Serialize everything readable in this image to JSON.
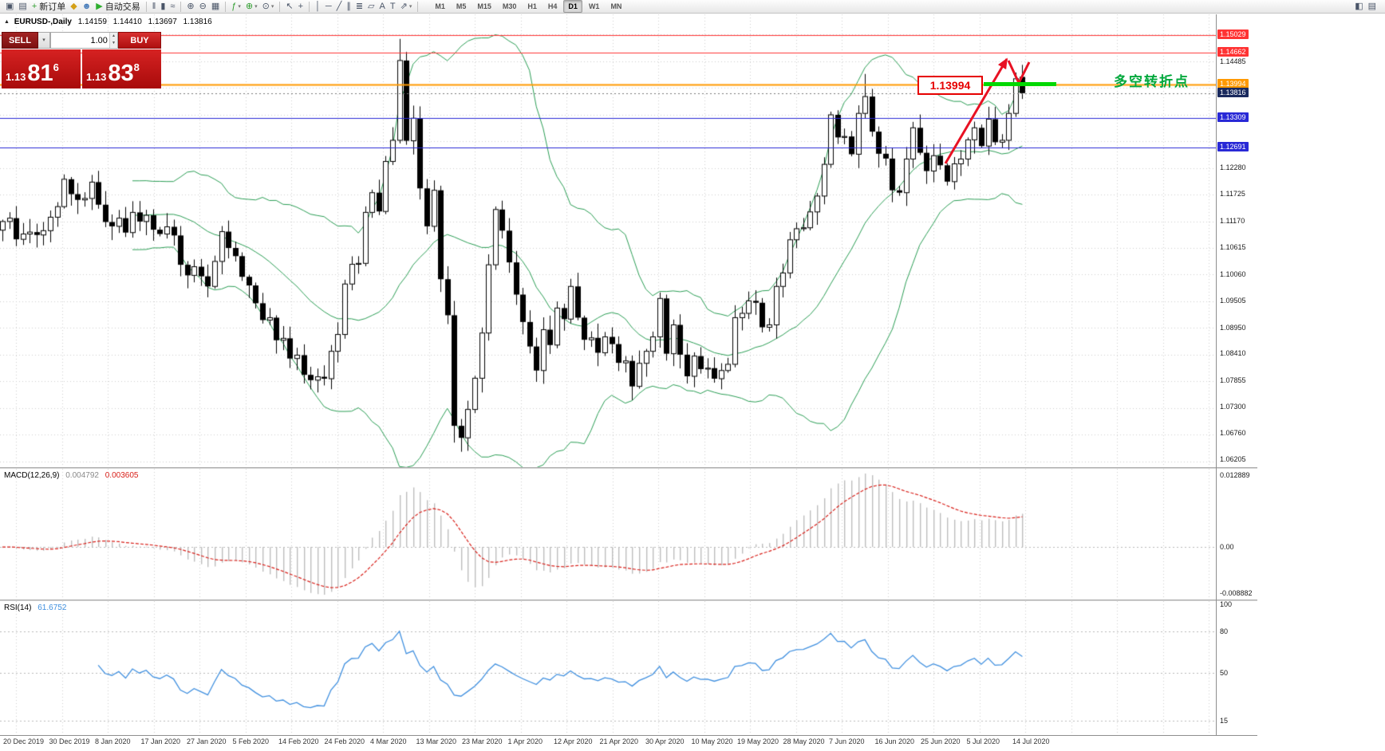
{
  "toolbar": {
    "items": [
      {
        "name": "terminal-window-icon",
        "glyph": "▣"
      },
      {
        "name": "new-chart-icon",
        "glyph": "▤"
      },
      {
        "name": "new-order-button",
        "glyph": "+",
        "label": "新订单",
        "color": "#2e9e2e",
        "caret": false
      },
      {
        "name": "metaquotes-icon",
        "glyph": "◆",
        "color": "#d4a017"
      },
      {
        "name": "community-icon",
        "glyph": "☻",
        "color": "#4a7ebb"
      },
      {
        "name": "autotrading-button",
        "glyph": "▶",
        "label": "自动交易",
        "color": "#2eae2e"
      },
      {
        "type": "sep"
      },
      {
        "name": "chart-bars-icon",
        "glyph": "‖"
      },
      {
        "name": "chart-candles-icon",
        "glyph": "▮"
      },
      {
        "name": "chart-line-icon",
        "glyph": "≈"
      },
      {
        "type": "sep"
      },
      {
        "name": "zoom-in-icon",
        "glyph": "⊕"
      },
      {
        "name": "zoom-out-icon",
        "glyph": "⊖"
      },
      {
        "name": "tile-windows-icon",
        "glyph": "▦"
      },
      {
        "type": "sep"
      },
      {
        "name": "indicators-button",
        "glyph": "ƒ",
        "color": "#2e9e2e",
        "caret": true
      },
      {
        "name": "add-indicator-button",
        "glyph": "⊕",
        "color": "#2e9e2e",
        "caret": true
      },
      {
        "name": "periods-button",
        "glyph": "⊙",
        "caret": true
      },
      {
        "type": "sep"
      },
      {
        "name": "cursor-icon",
        "glyph": "↖"
      },
      {
        "name": "crosshair-icon",
        "glyph": "+"
      },
      {
        "type": "sep"
      },
      {
        "name": "vertical-line-icon",
        "glyph": "│"
      },
      {
        "name": "horizontal-line-icon",
        "glyph": "─"
      },
      {
        "name": "trendline-icon",
        "glyph": "╱"
      },
      {
        "name": "channel-icon",
        "glyph": "∥"
      },
      {
        "name": "fibonacci-icon",
        "glyph": "≣"
      },
      {
        "name": "shapes-icon",
        "glyph": "▱"
      },
      {
        "name": "text-icon",
        "glyph": "A"
      },
      {
        "name": "text-label-icon",
        "glyph": "T"
      },
      {
        "name": "arrows-icon",
        "glyph": "⇗",
        "caret": true
      },
      {
        "type": "sep"
      }
    ],
    "timeframes": [
      "M1",
      "M5",
      "M15",
      "M30",
      "H1",
      "H4",
      "D1",
      "W1",
      "MN"
    ],
    "active_timeframe": "D1",
    "right_items": [
      {
        "name": "workspace-icon",
        "glyph": "◧"
      },
      {
        "name": "docking-icon",
        "glyph": "▤"
      }
    ]
  },
  "chart_header": {
    "collapse_icon": "▲",
    "symbol": "EURUSD-,Daily",
    "open": "1.14159",
    "high": "1.14410",
    "low": "1.13697",
    "close": "1.13816"
  },
  "trade_panel": {
    "sell_label": "SELL",
    "buy_label": "BUY",
    "lot": "1.00",
    "sell_price_prefix": "1.13",
    "sell_price_big": "81",
    "sell_price_sup": "6",
    "buy_price_prefix": "1.13",
    "buy_price_big": "83",
    "buy_price_sup": "8"
  },
  "annotations": {
    "price_label": "1.13994",
    "turning_point": "多空转折点"
  },
  "chart_data": {
    "type": "candlestick",
    "symbol": "EURUSD",
    "timeframe": "Daily",
    "grid": true,
    "ylim": [
      1.0605,
      1.1546
    ],
    "dates": [
      "20 Dec 2019",
      "30 Dec 2019",
      "8 Jan 2020",
      "17 Jan 2020",
      "27 Jan 2020",
      "5 Feb 2020",
      "14 Feb 2020",
      "24 Feb 2020",
      "4 Mar 2020",
      "13 Mar 2020",
      "23 Mar 2020",
      "1 Apr 2020",
      "12 Apr 2020",
      "21 Apr 2020",
      "30 Apr 2020",
      "10 May 2020",
      "19 May 2020",
      "28 May 2020",
      "7 Jun 2020",
      "16 Jun 2020",
      "25 Jun 2020",
      "5 Jul 2020",
      "14 Jul 2020"
    ],
    "closes": [
      1.1115,
      1.1122,
      1.1078,
      1.1089,
      1.1093,
      1.1087,
      1.1096,
      1.1124,
      1.1146,
      1.1203,
      1.1172,
      1.116,
      1.1163,
      1.1197,
      1.115,
      1.1114,
      1.1105,
      1.1122,
      1.1092,
      1.1134,
      1.1115,
      1.1128,
      1.1098,
      1.1089,
      1.1104,
      1.1086,
      1.1025,
      1.1003,
      1.1021,
      1.1001,
      1.098,
      1.1032,
      1.1094,
      1.106,
      1.1043,
      1.1,
      1.0982,
      1.0945,
      1.091,
      1.0915,
      1.0868,
      1.0872,
      1.083,
      1.0837,
      1.0796,
      1.0785,
      1.0792,
      1.0788,
      1.0845,
      1.088,
      1.0985,
      1.1026,
      1.1028,
      1.1134,
      1.1175,
      1.1136,
      1.124,
      1.1284,
      1.145,
      1.1283,
      1.133,
      1.1184,
      1.1105,
      1.118,
      1.0995,
      1.092,
      1.069,
      1.0665,
      1.0724,
      1.0789,
      1.0883,
      1.1025,
      1.114,
      1.1096,
      1.103,
      1.0963,
      1.0906,
      1.0855,
      1.0805,
      1.089,
      1.0858,
      1.0935,
      1.0912,
      1.098,
      1.0915,
      1.0869,
      1.0873,
      1.0842,
      1.0875,
      1.086,
      1.0821,
      1.0825,
      1.0772,
      1.082,
      1.0845,
      1.0875,
      1.0955,
      1.084,
      1.09,
      1.0838,
      1.0793,
      1.0835,
      1.0808,
      1.081,
      1.0788,
      1.0805,
      1.0818,
      1.0915,
      1.0924,
      1.095,
      1.0946,
      1.0895,
      1.09,
      1.098,
      1.1008,
      1.1077,
      1.11,
      1.1102,
      1.1135,
      1.1168,
      1.1234,
      1.1337,
      1.129,
      1.1292,
      1.1255,
      1.134,
      1.1375,
      1.1302,
      1.1256,
      1.1246,
      1.118,
      1.1175,
      1.1245,
      1.131,
      1.1258,
      1.122,
      1.1252,
      1.1232,
      1.1198,
      1.1235,
      1.1245,
      1.1285,
      1.131,
      1.1272,
      1.1328,
      1.128,
      1.1284,
      1.134,
      1.1412,
      1.1382
    ],
    "candle_overrides": [
      {
        "i": 58,
        "h": 1.1495
      },
      {
        "i": 66,
        "l": 1.0655
      },
      {
        "i": 67,
        "l": 1.0636
      },
      {
        "i": 126,
        "h": 1.1422
      },
      {
        "i": 148,
        "h": 1.1425
      },
      {
        "i": 149,
        "o": 1.1416,
        "h": 1.1441,
        "l": 1.137
      }
    ],
    "bollinger": {
      "period": 20,
      "deviation": 2,
      "color": "#2a9d54"
    },
    "horizontal_lines": [
      {
        "price": 1.15029,
        "color": "#ff3333",
        "width": 1
      },
      {
        "price": 1.14662,
        "color": "#ff3333",
        "width": 1
      },
      {
        "price": 1.13994,
        "color": "#ff9900",
        "width": 2
      },
      {
        "price": 1.13309,
        "color": "#2929d6",
        "width": 1
      },
      {
        "price": 1.12691,
        "color": "#2929d6",
        "width": 1
      },
      {
        "price": 1.13816,
        "color": "#777777",
        "width": 1,
        "dash": [
          2,
          3
        ]
      }
    ],
    "price_axis": {
      "plain": [
        "1.14485",
        "1.12280",
        "1.11725",
        "1.11170",
        "1.10615",
        "1.10060",
        "1.09505",
        "1.08950",
        "1.08410",
        "1.07855",
        "1.07300",
        "1.06760",
        "1.06205"
      ],
      "tagged": [
        {
          "text": "1.15029",
          "price": 1.15029,
          "bg": "#ff3333"
        },
        {
          "text": "1.14662",
          "price": 1.14662,
          "bg": "#ff3333"
        },
        {
          "text": "1.13994",
          "price": 1.13994,
          "bg": "#ff9900"
        },
        {
          "text": "1.13816",
          "price": 1.13816,
          "bg": "#1a2a5e"
        },
        {
          "text": "1.13309",
          "price": 1.13309,
          "bg": "#2929d6"
        },
        {
          "text": "1.12691",
          "price": 1.12691,
          "bg": "#2929d6"
        }
      ]
    },
    "macd_label": "MACD(12,26,9)",
    "macd_values": [
      "0.004792",
      "0.003605"
    ],
    "macd_axis": [
      "0.012889",
      "0.00",
      "-0.008882"
    ],
    "macd_params": {
      "fast": 12,
      "slow": 26,
      "signal": 9,
      "histogram_color": "#bdbdbd",
      "signal_color": "#d8201a"
    },
    "rsi_label": "RSI(14)",
    "rsi_value": "61.6752",
    "rsi_axis": [
      "100",
      "80",
      "50",
      "15"
    ],
    "rsi_params": {
      "period": 14,
      "color": "#3f8fdf"
    }
  }
}
